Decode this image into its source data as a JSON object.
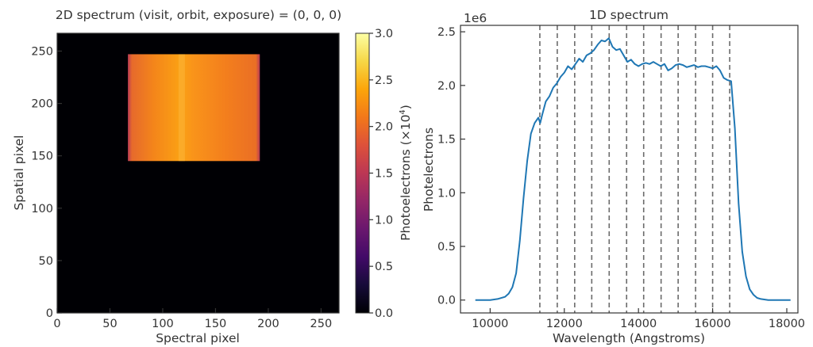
{
  "chart_data": [
    {
      "type": "heatmap",
      "title": "2D spectrum (visit, orbit, exposure) = (0, 0, 0)",
      "xlabel": "Spectral pixel",
      "ylabel": "Spatial pixel",
      "xlim": [
        0,
        267
      ],
      "ylim": [
        0,
        267
      ],
      "xticks": [
        0,
        50,
        100,
        150,
        200,
        250
      ],
      "yticks": [
        0,
        50,
        100,
        150,
        200,
        250
      ],
      "colormap": "inferno",
      "colorbar": {
        "label_main": "Photoelectrons (×10",
        "label_exp": "4",
        "label_close": ")",
        "range": [
          0,
          3.0
        ],
        "ticks": [
          "0.0",
          "0.5",
          "1.0",
          "1.5",
          "2.0",
          "2.5",
          "3.0"
        ]
      },
      "illuminated_region": {
        "x_range": [
          67,
          192
        ],
        "y_range": [
          145,
          247
        ],
        "typical_value": 2.0,
        "peak_column": 118,
        "peak_value": 2.4
      }
    },
    {
      "type": "line",
      "title": "1D spectrum",
      "xlabel": "Wavelength (Angstroms)",
      "ylabel": "Photelectrons",
      "offset_text": "1e6",
      "xlim": [
        9200,
        18300
      ],
      "ylim": [
        -0.12,
        2.56
      ],
      "xticks": [
        10000,
        12000,
        14000,
        16000,
        18000
      ],
      "yticks": [
        0.0,
        0.5,
        1.0,
        1.5,
        2.0,
        2.5
      ],
      "ytick_labels": [
        "0.0",
        "0.5",
        "1.0",
        "1.5",
        "2.0",
        "2.5"
      ],
      "vlines": [
        11340,
        11810,
        12280,
        12740,
        13210,
        13680,
        14140,
        14610,
        15070,
        15540,
        16000,
        16460
      ],
      "series": [
        {
          "color": "#1f77b4",
          "x": [
            9600,
            10000,
            10200,
            10400,
            10500,
            10600,
            10700,
            10800,
            10900,
            11000,
            11100,
            11200,
            11300,
            11350,
            11400,
            11500,
            11600,
            11700,
            11800,
            11900,
            12000,
            12100,
            12200,
            12300,
            12400,
            12500,
            12600,
            12700,
            12800,
            12900,
            13000,
            13100,
            13200,
            13300,
            13400,
            13500,
            13600,
            13700,
            13800,
            13900,
            14000,
            14100,
            14200,
            14300,
            14400,
            14500,
            14600,
            14700,
            14800,
            14900,
            15000,
            15100,
            15200,
            15300,
            15400,
            15500,
            15600,
            15700,
            15800,
            15900,
            16000,
            16100,
            16200,
            16300,
            16400,
            16500,
            16600,
            16700,
            16800,
            16900,
            17000,
            17100,
            17200,
            17300,
            17500,
            17800,
            18100
          ],
          "y": [
            0.0,
            0.0,
            0.01,
            0.03,
            0.06,
            0.12,
            0.25,
            0.55,
            0.95,
            1.3,
            1.55,
            1.65,
            1.7,
            1.65,
            1.72,
            1.85,
            1.9,
            1.98,
            2.02,
            2.08,
            2.12,
            2.18,
            2.15,
            2.2,
            2.25,
            2.22,
            2.28,
            2.3,
            2.33,
            2.38,
            2.42,
            2.41,
            2.44,
            2.36,
            2.33,
            2.34,
            2.28,
            2.22,
            2.24,
            2.2,
            2.18,
            2.2,
            2.21,
            2.2,
            2.22,
            2.2,
            2.18,
            2.2,
            2.14,
            2.16,
            2.19,
            2.2,
            2.19,
            2.17,
            2.18,
            2.19,
            2.17,
            2.18,
            2.18,
            2.17,
            2.16,
            2.18,
            2.14,
            2.07,
            2.05,
            2.04,
            1.6,
            0.9,
            0.45,
            0.22,
            0.1,
            0.05,
            0.02,
            0.01,
            0.0,
            0.0,
            0.0
          ]
        }
      ]
    }
  ]
}
